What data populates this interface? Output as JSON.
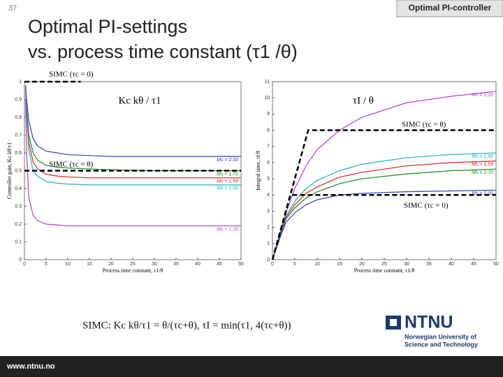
{
  "slide": {
    "number": "37",
    "header": "Optimal PI-controller",
    "title": [
      "Optimal PI-settings",
      "vs. process time constant (τ1 /θ)"
    ],
    "formula": "SIMC:   Kc kθ/τ1 = θ/(τc+θ),   τI = min(τ1, 4(τc+θ))",
    "logo": "NTNU",
    "logo_subtitle": [
      "Norwegian University of",
      "Science and Technology"
    ],
    "footer": "www.ntnu.no"
  },
  "chart_data": [
    {
      "type": "line",
      "annotation": "Kc kθ / τ1",
      "xlabel": "Process time constant, τ1/θ",
      "ylabel": "Controller gain, Kc kθ/τ1",
      "xlim": [
        0,
        50
      ],
      "xticks": [
        0,
        5,
        10,
        15,
        20,
        25,
        30,
        35,
        40,
        45,
        50
      ],
      "ylim": [
        0,
        1
      ],
      "yticks": [
        0,
        0.1,
        0.2,
        0.3,
        0.4,
        0.5,
        0.6,
        0.7,
        0.8,
        0.9,
        1
      ],
      "x": [
        0.25,
        0.5,
        1,
        2,
        3,
        5,
        7.5,
        10,
        15,
        20,
        30,
        40,
        50
      ],
      "series": [
        {
          "name": "Ms = 2.00",
          "color": "#2f3fbf",
          "values": [
            0.98,
            0.9,
            0.78,
            0.68,
            0.64,
            0.61,
            0.6,
            0.59,
            0.585,
            0.58,
            0.58,
            0.58,
            0.58
          ]
        },
        {
          "name": "Ms = 1.70",
          "color": "#138a22",
          "values": [
            0.97,
            0.85,
            0.7,
            0.6,
            0.56,
            0.53,
            0.52,
            0.515,
            0.51,
            0.505,
            0.5,
            0.5,
            0.5
          ]
        },
        {
          "name": "Ms = 1.59",
          "color": "#e02020",
          "values": [
            0.96,
            0.82,
            0.66,
            0.55,
            0.51,
            0.48,
            0.47,
            0.465,
            0.46,
            0.46,
            0.46,
            0.46,
            0.46
          ]
        },
        {
          "name": "Ms = 1.50",
          "color": "#1fb0c0",
          "values": [
            0.95,
            0.8,
            0.62,
            0.5,
            0.47,
            0.44,
            0.43,
            0.425,
            0.42,
            0.42,
            0.42,
            0.42,
            0.42
          ]
        },
        {
          "name": "Ms = 1.20",
          "color": "#b03ed0",
          "values": [
            0.9,
            0.6,
            0.35,
            0.25,
            0.22,
            0.2,
            0.195,
            0.19,
            0.19,
            0.19,
            0.19,
            0.19,
            0.19
          ]
        },
        {
          "name": "SIMC (τc = 0)",
          "color": "#000000",
          "dashed": true,
          "x": [
            0,
            13
          ],
          "values": [
            1,
            1
          ]
        },
        {
          "name": "SIMC (τc = θ)",
          "color": "#000000",
          "dashed": true,
          "x": [
            0,
            50
          ],
          "values": [
            0.5,
            0.5
          ]
        }
      ]
    },
    {
      "type": "line",
      "annotation": "τI / θ",
      "xlabel": "Process time constant, τ1/θ",
      "ylabel": "Integral time, τI/θ",
      "xlim": [
        0,
        50
      ],
      "xticks": [
        0,
        5,
        10,
        15,
        20,
        25,
        30,
        35,
        40,
        45,
        50
      ],
      "ylim": [
        0,
        11
      ],
      "yticks": [
        0,
        1,
        2,
        3,
        4,
        5,
        6,
        7,
        8,
        9,
        10,
        11
      ],
      "x": [
        0,
        1,
        2,
        3,
        5,
        7.5,
        10,
        15,
        20,
        30,
        40,
        50
      ],
      "series": [
        {
          "name": "Ms = 1.20",
          "color": "#b03ed0",
          "values": [
            0,
            1,
            2,
            2.9,
            4.4,
            5.8,
            6.8,
            8.0,
            8.8,
            9.7,
            10.1,
            10.4
          ]
        },
        {
          "name": "Ms = 1.50",
          "color": "#1fb0c0",
          "values": [
            0,
            1,
            1.9,
            2.7,
            3.6,
            4.4,
            4.9,
            5.5,
            5.9,
            6.3,
            6.5,
            6.6
          ]
        },
        {
          "name": "Ms = 1.59",
          "color": "#e02020",
          "values": [
            0,
            0.95,
            1.8,
            2.6,
            3.4,
            4.1,
            4.5,
            5.1,
            5.4,
            5.8,
            6.0,
            6.1
          ]
        },
        {
          "name": "Ms = 1.70",
          "color": "#138a22",
          "values": [
            0,
            0.9,
            1.7,
            2.5,
            3.2,
            3.8,
            4.2,
            4.7,
            5.0,
            5.3,
            5.5,
            5.6
          ]
        },
        {
          "name": "Ms = 2.00",
          "color": "#2f3fbf",
          "values": [
            0,
            0.8,
            1.6,
            2.3,
            2.9,
            3.4,
            3.7,
            4.0,
            4.1,
            4.2,
            4.25,
            4.3
          ]
        },
        {
          "name": "SIMC (τc = θ)",
          "color": "#000000",
          "dashed": true,
          "x": [
            0,
            8,
            50
          ],
          "values": [
            0,
            8,
            8
          ]
        },
        {
          "name": "SIMC (τc = 0)",
          "color": "#000000",
          "dashed": true,
          "x": [
            0,
            4,
            50
          ],
          "values": [
            0,
            4,
            4
          ]
        }
      ]
    }
  ]
}
